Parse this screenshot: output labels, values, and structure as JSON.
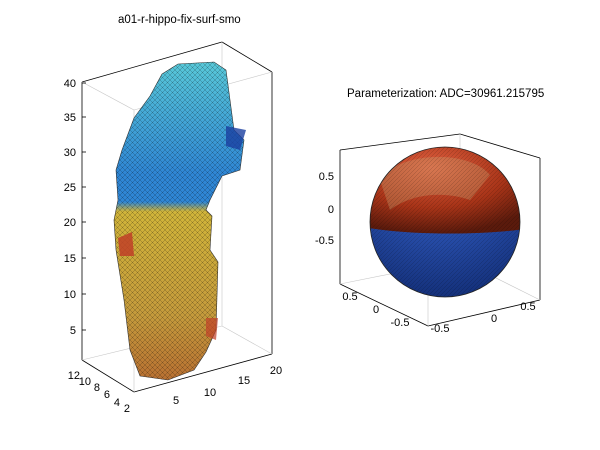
{
  "left_plot": {
    "title": "a01-r-hippo-fix-surf-smo",
    "z_ticks": [
      "5",
      "10",
      "15",
      "20",
      "25",
      "30",
      "35",
      "40"
    ],
    "x_ticks": [
      "5",
      "10",
      "15",
      "20"
    ],
    "y_ticks": [
      "2",
      "4",
      "6",
      "8",
      "10",
      "12"
    ]
  },
  "right_plot": {
    "title": "Parameterization: ADC=30961.215795",
    "z_ticks": [
      "0.5",
      "0",
      "-0.5"
    ],
    "x_ticks": [
      "-0.5",
      "0",
      "0.5"
    ],
    "y_ticks": [
      "0.5",
      "0",
      "-0.5"
    ]
  },
  "colors": {
    "cyan": "#44b8d0",
    "blue": "#2a6fd0",
    "yellow": "#c8b040",
    "orange": "#c88840",
    "red": "#b83818",
    "dark_blue": "#1a3fa0"
  }
}
